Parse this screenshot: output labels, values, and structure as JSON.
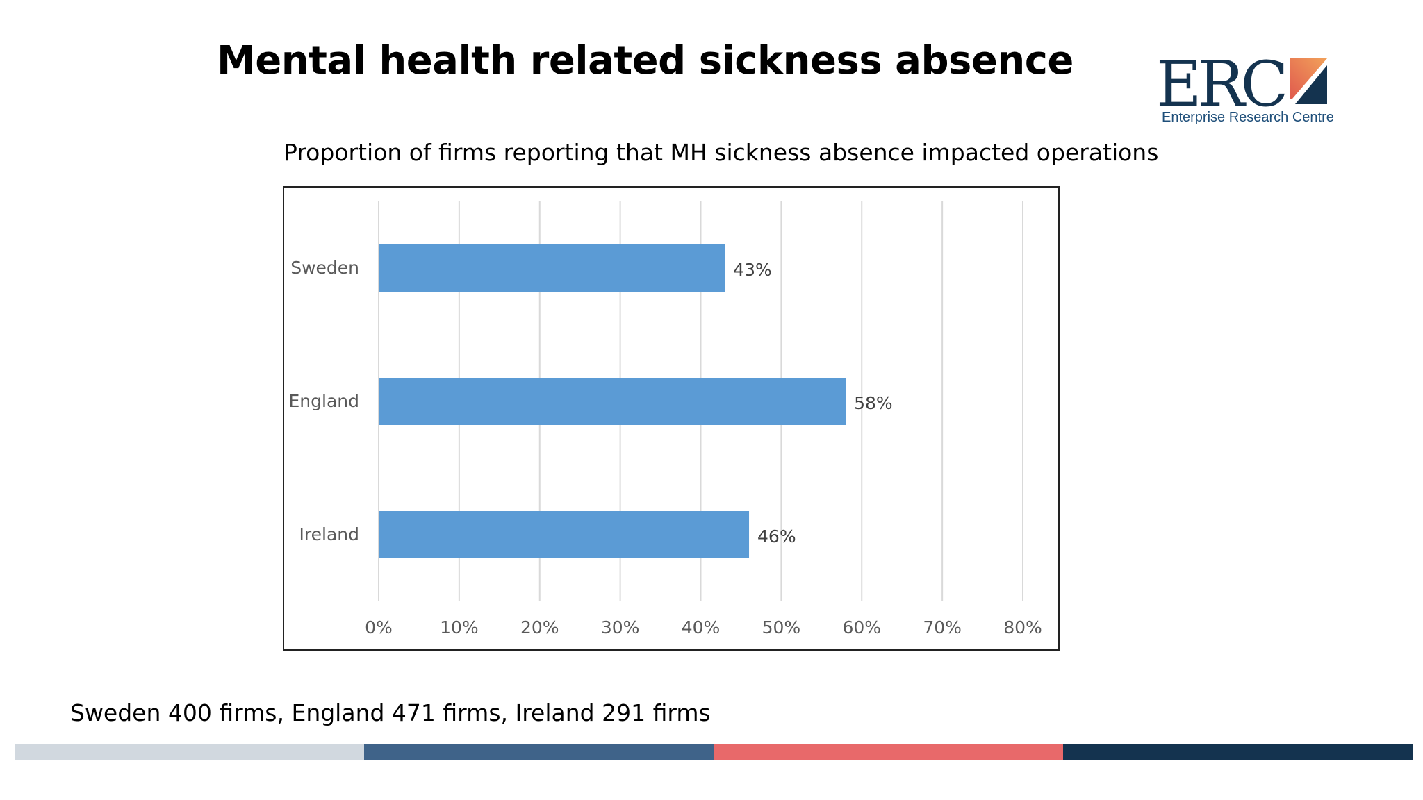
{
  "slide": {
    "title": "Mental health related sickness absence",
    "footnote": "Sweden 400 firms, England 471 firms, Ireland 291 firms"
  },
  "logo": {
    "mark": "ERC",
    "subtitle": "Enterprise Research Centre",
    "colors": {
      "text": "#14334f",
      "icon_gradient": [
        "#e05a4e",
        "#f2a25a"
      ],
      "icon_dark": "#14334f"
    }
  },
  "footer_band": {
    "colors": [
      "#d1d8df",
      "#3f6389",
      "#e8696a",
      "#14334f"
    ]
  },
  "chart_data": {
    "type": "bar",
    "orientation": "horizontal",
    "title": "Proportion of firms reporting that MH sickness absence impacted operations",
    "categories": [
      "Sweden",
      "England",
      "Ireland"
    ],
    "values": [
      43,
      58,
      46
    ],
    "data_labels": [
      "43%",
      "58%",
      "46%"
    ],
    "xlim": [
      0,
      80
    ],
    "x_ticks": [
      "0%",
      "10%",
      "20%",
      "30%",
      "40%",
      "50%",
      "60%",
      "70%",
      "80%"
    ],
    "grid": "vertical",
    "bar_color": "#5b9bd5",
    "legend": "none"
  }
}
